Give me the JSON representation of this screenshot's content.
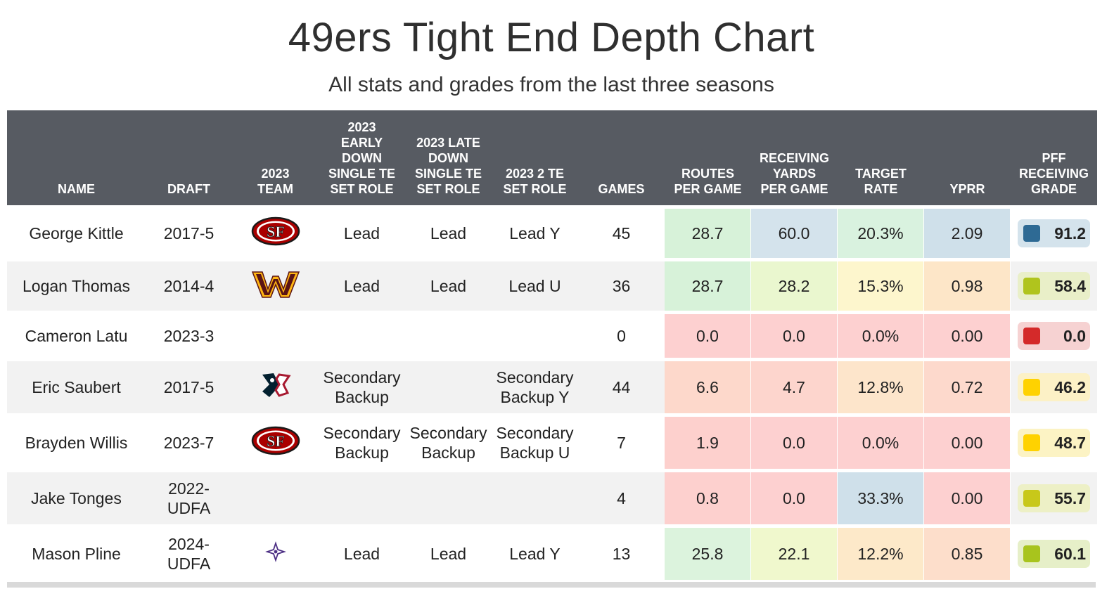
{
  "title": "49ers Tight End Depth Chart",
  "subtitle": "All stats and grades from the last three seasons",
  "chart_data": {
    "type": "table",
    "columns": [
      [
        "NAME"
      ],
      [
        "DRAFT"
      ],
      [
        "2023",
        "TEAM"
      ],
      [
        "2023",
        "EARLY",
        "DOWN",
        "SINGLE TE",
        "SET ROLE"
      ],
      [
        "2023 LATE",
        "DOWN",
        "SINGLE TE",
        "SET ROLE"
      ],
      [
        "2023 2 TE",
        "SET ROLE"
      ],
      [
        "GAMES"
      ],
      [
        "ROUTES",
        "PER GAME"
      ],
      [
        "RECEIVING",
        "YARDS",
        "PER GAME"
      ],
      [
        "TARGET",
        "RATE"
      ],
      [
        "YPRR"
      ],
      [
        "PFF",
        "RECEIVING",
        "GRADE"
      ]
    ],
    "rows": [
      {
        "name": "George Kittle",
        "draft": [
          "2017-5"
        ],
        "team_logo": "49ers-logo-icon",
        "early": [
          "Lead"
        ],
        "late": [
          "Lead"
        ],
        "two_te": [
          "Lead Y"
        ],
        "games": "45",
        "routes": "28.7",
        "yards": "60.0",
        "target": "20.3%",
        "yprr": "2.09",
        "grade": "91.2",
        "colors": {
          "routes": "#d7f2d9",
          "yards": "#d4e3ec",
          "target": "#d9f2df",
          "yprr": "#cfe0ea",
          "grade_bg": "#d4e3ec",
          "grade_sq": "#2e6a94"
        }
      },
      {
        "name": "Logan Thomas",
        "draft": [
          "2014-4"
        ],
        "team_logo": "commanders-logo-icon",
        "early": [
          "Lead"
        ],
        "late": [
          "Lead"
        ],
        "two_te": [
          "Lead U"
        ],
        "games": "36",
        "routes": "28.7",
        "yards": "28.2",
        "target": "15.3%",
        "yprr": "0.98",
        "grade": "58.4",
        "colors": {
          "routes": "#d7f2d9",
          "yards": "#eaf7cf",
          "target": "#fdf6cd",
          "yprr": "#fde6c8",
          "grade_bg": "#e9efc8",
          "grade_sq": "#b0c41d"
        }
      },
      {
        "name": "Cameron Latu",
        "draft": [
          "2023-3"
        ],
        "team_logo": "",
        "early": [],
        "late": [],
        "two_te": [],
        "games": "0",
        "routes": "0.0",
        "yards": "0.0",
        "target": "0.0%",
        "yprr": "0.00",
        "grade": "0.0",
        "colors": {
          "routes": "#fdd0d0",
          "yards": "#fdd0d0",
          "target": "#fdd0d0",
          "yprr": "#fdd0d0",
          "grade_bg": "#f6d2d2",
          "grade_sq": "#d42a2a"
        }
      },
      {
        "name": "Eric Saubert",
        "draft": [
          "2017-5"
        ],
        "team_logo": "texans-logo-icon",
        "early": [
          "Secondary",
          "Backup"
        ],
        "late": [],
        "two_te": [
          "Secondary",
          "Backup Y"
        ],
        "games": "44",
        "routes": "6.6",
        "yards": "4.7",
        "target": "12.8%",
        "yprr": "0.72",
        "grade": "46.2",
        "colors": {
          "routes": "#fdd8cb",
          "yards": "#fdd5cd",
          "target": "#fde5cb",
          "yprr": "#fdd9cc",
          "grade_bg": "#fcf1c6",
          "grade_sq": "#ffd200"
        }
      },
      {
        "name": "Brayden Willis",
        "draft": [
          "2023-7"
        ],
        "team_logo": "49ers-logo-icon",
        "early": [
          "Secondary",
          "Backup"
        ],
        "late": [
          "Secondary",
          "Backup"
        ],
        "two_te": [
          "Secondary",
          "Backup U"
        ],
        "games": "7",
        "routes": "1.9",
        "yards": "0.0",
        "target": "0.0%",
        "yprr": "0.00",
        "grade": "48.7",
        "colors": {
          "routes": "#fdd0cd",
          "yards": "#fdd0d0",
          "target": "#fdd0d0",
          "yprr": "#fdd0d0",
          "grade_bg": "#fcf3c4",
          "grade_sq": "#ffd200"
        }
      },
      {
        "name": "Jake Tonges",
        "draft": [
          "2022-",
          "UDFA"
        ],
        "team_logo": "",
        "early": [],
        "late": [],
        "two_te": [],
        "games": "4",
        "routes": "0.8",
        "yards": "0.0",
        "target": "33.3%",
        "yprr": "0.00",
        "grade": "55.7",
        "colors": {
          "routes": "#fdd0ce",
          "yards": "#fdd0d0",
          "target": "#cfe0ea",
          "yprr": "#fdd0d0",
          "grade_bg": "#edf0c6",
          "grade_sq": "#c8c81a"
        }
      },
      {
        "name": "Mason Pline",
        "draft": [
          "2024-",
          "UDFA"
        ],
        "team_logo": "ncaa-logo-icon",
        "early": [
          "Lead"
        ],
        "late": [
          "Lead"
        ],
        "two_te": [
          "Lead Y"
        ],
        "games": "13",
        "routes": "25.8",
        "yards": "22.1",
        "target": "12.2%",
        "yprr": "0.85",
        "grade": "60.1",
        "colors": {
          "routes": "#dcf3dd",
          "yards": "#f0f8cd",
          "target": "#fde9c9",
          "yprr": "#fddecb",
          "grade_bg": "#e6efc8",
          "grade_sq": "#a8c41d"
        }
      }
    ]
  }
}
